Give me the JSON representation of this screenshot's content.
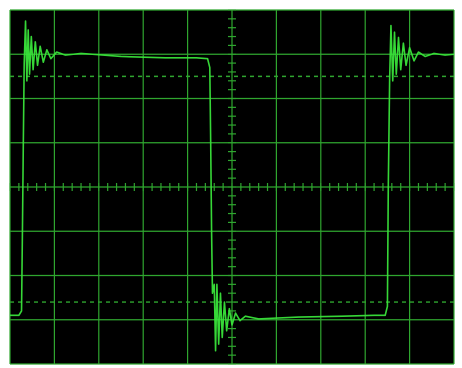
{
  "chart_data": {
    "type": "line",
    "title": "",
    "xlabel": "",
    "ylabel": "",
    "grid": true,
    "legend": "none",
    "colors": {
      "screen": "#000000",
      "frame": "#ffffff",
      "grid": "#2fa62f",
      "trace": "#39e33a"
    },
    "divisions": {
      "x": 10,
      "y": 8
    },
    "xlim": [
      0,
      10
    ],
    "ylim": [
      -4,
      4
    ],
    "reference_levels": [
      2.5,
      -2.6
    ],
    "series": [
      {
        "points": [
          [
            0.0,
            -2.9
          ],
          [
            0.2,
            -2.9
          ],
          [
            0.26,
            -2.8
          ],
          [
            0.28,
            -1.0
          ],
          [
            0.3,
            1.0
          ],
          [
            0.32,
            2.8
          ],
          [
            0.35,
            3.75
          ],
          [
            0.38,
            2.4
          ],
          [
            0.41,
            3.55
          ],
          [
            0.44,
            2.55
          ],
          [
            0.48,
            3.4
          ],
          [
            0.52,
            2.65
          ],
          [
            0.57,
            3.28
          ],
          [
            0.62,
            2.75
          ],
          [
            0.68,
            3.18
          ],
          [
            0.75,
            2.82
          ],
          [
            0.83,
            3.1
          ],
          [
            0.92,
            2.9
          ],
          [
            1.05,
            3.05
          ],
          [
            1.25,
            2.98
          ],
          [
            1.6,
            3.02
          ],
          [
            2.5,
            2.95
          ],
          [
            3.5,
            2.92
          ],
          [
            4.2,
            2.92
          ],
          [
            4.45,
            2.9
          ],
          [
            4.5,
            2.7
          ],
          [
            4.52,
            1.0
          ],
          [
            4.54,
            -1.0
          ],
          [
            4.56,
            -2.4
          ],
          [
            4.6,
            -2.2
          ],
          [
            4.63,
            -3.7
          ],
          [
            4.66,
            -2.2
          ],
          [
            4.7,
            -3.55
          ],
          [
            4.74,
            -2.4
          ],
          [
            4.78,
            -3.4
          ],
          [
            4.83,
            -2.6
          ],
          [
            4.88,
            -3.25
          ],
          [
            4.94,
            -2.75
          ],
          [
            5.0,
            -3.12
          ],
          [
            5.08,
            -2.85
          ],
          [
            5.18,
            -3.02
          ],
          [
            5.3,
            -2.92
          ],
          [
            5.6,
            -2.98
          ],
          [
            6.5,
            -2.94
          ],
          [
            7.5,
            -2.92
          ],
          [
            8.2,
            -2.9
          ],
          [
            8.45,
            -2.9
          ],
          [
            8.5,
            -2.7
          ],
          [
            8.52,
            0.0
          ],
          [
            8.55,
            2.4
          ],
          [
            8.58,
            3.65
          ],
          [
            8.62,
            2.4
          ],
          [
            8.66,
            3.5
          ],
          [
            8.7,
            2.55
          ],
          [
            8.75,
            3.38
          ],
          [
            8.8,
            2.65
          ],
          [
            8.86,
            3.25
          ],
          [
            8.92,
            2.75
          ],
          [
            9.0,
            3.15
          ],
          [
            9.1,
            2.85
          ],
          [
            9.2,
            3.05
          ],
          [
            9.35,
            2.95
          ],
          [
            9.55,
            3.02
          ],
          [
            9.8,
            2.98
          ],
          [
            10.0,
            3.0
          ]
        ]
      }
    ]
  }
}
